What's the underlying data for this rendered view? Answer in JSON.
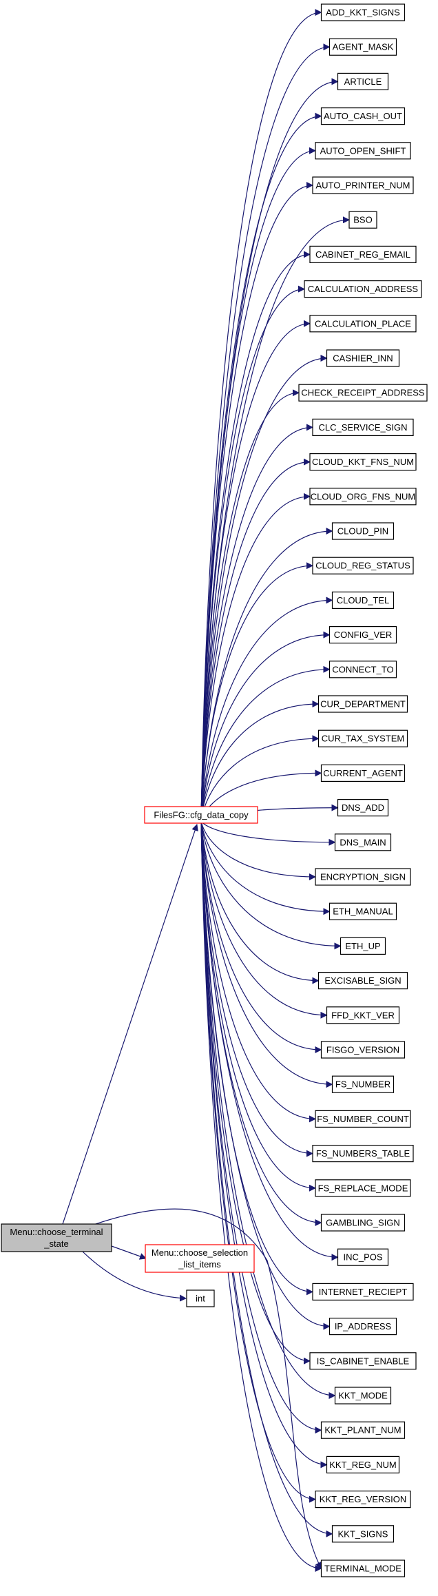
{
  "graph": {
    "root": {
      "lines": [
        "Menu::choose_terminal",
        "_state"
      ]
    },
    "hub": {
      "label": "FilesFG::cfg_data_copy"
    },
    "secondary": [
      {
        "lines": [
          "Menu::choose_selection",
          "_list_items"
        ]
      },
      {
        "lines": [
          "int"
        ]
      }
    ],
    "targets": [
      "ADD_KKT_SIGNS",
      "AGENT_MASK",
      "ARTICLE",
      "AUTO_CASH_OUT",
      "AUTO_OPEN_SHIFT",
      "AUTO_PRINTER_NUM",
      "BSO",
      "CABINET_REG_EMAIL",
      "CALCULATION_ADDRESS",
      "CALCULATION_PLACE",
      "CASHIER_INN",
      "CHECK_RECEIPT_ADDRESS",
      "CLC_SERVICE_SIGN",
      "CLOUD_KKT_FNS_NUM",
      "CLOUD_ORG_FNS_NUM",
      "CLOUD_PIN",
      "CLOUD_REG_STATUS",
      "CLOUD_TEL",
      "CONFIG_VER",
      "CONNECT_TO",
      "CUR_DEPARTMENT",
      "CUR_TAX_SYSTEM",
      "CURRENT_AGENT",
      "DNS_ADD",
      "DNS_MAIN",
      "ENCRYPTION_SIGN",
      "ETH_MANUAL",
      "ETH_UP",
      "EXCISABLE_SIGN",
      "FFD_KKT_VER",
      "FISGO_VERSION",
      "FS_NUMBER",
      "FS_NUMBER_COUNT",
      "FS_NUMBERS_TABLE",
      "FS_REPLACE_MODE",
      "GAMBLING_SIGN",
      "INC_POS",
      "INTERNET_RECIEPT",
      "IP_ADDRESS",
      "IS_CABINET_ENABLE",
      "KKT_MODE",
      "KKT_PLANT_NUM",
      "KKT_REG_NUM",
      "KKT_REG_VERSION",
      "KKT_SIGNS",
      "TERMINAL_MODE"
    ],
    "colors": {
      "edge": "#191970",
      "hub_border": "#ff0000",
      "node_border": "#000000",
      "root_fill": "#bfbfbf"
    }
  }
}
